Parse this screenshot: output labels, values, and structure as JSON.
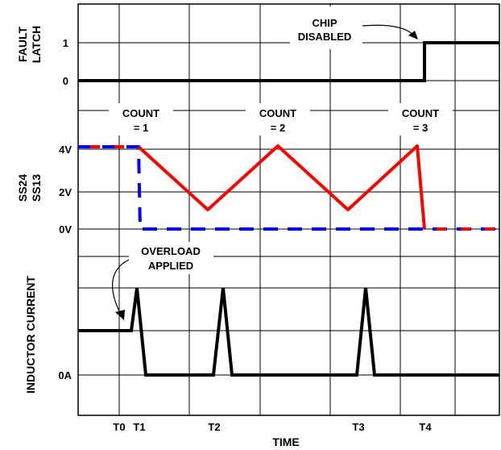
{
  "chart_data": {
    "type": "line",
    "x_axis_label": "TIME",
    "x_ticks": [
      "T0",
      "T1",
      "T2",
      "T3",
      "T4"
    ],
    "panels": [
      {
        "ylabel_lines": [
          "FAULT",
          "LATCH"
        ],
        "ytick_labels": [
          "1",
          "0"
        ],
        "annotations": [
          "CHIP",
          "DISABLED"
        ],
        "series": [
          {
            "color": "#000000",
            "points": [
              [
                "start",
                0
              ],
              [
                "T4",
                0
              ],
              [
                "T4",
                1
              ],
              [
                "end",
                1
              ]
            ]
          }
        ]
      },
      {
        "ylabel_lines": [
          "SS24",
          "SS13"
        ],
        "ylabel_colors": [
          "#ff0000",
          "#0000ff"
        ],
        "ytick_labels": [
          "4V",
          "2V",
          "0V"
        ],
        "count_labels": [
          {
            "top": "COUNT",
            "bottom": "= 1"
          },
          {
            "top": "COUNT",
            "bottom": "= 2"
          },
          {
            "top": "COUNT",
            "bottom": "= 3"
          }
        ],
        "series": [
          {
            "color": "#ff0000",
            "style": "solid",
            "points": [
              [
                0,
                4.2
              ],
              [
                1,
                4.2
              ],
              [
                2,
                1.0
              ],
              [
                3,
                4.2
              ],
              [
                4,
                1.0
              ],
              [
                5,
                4.2
              ],
              [
                6,
                0
              ],
              [
                7,
                0
              ]
            ]
          },
          {
            "color": "#0000ff",
            "style": "dashed",
            "points": [
              [
                0,
                4.2
              ],
              [
                1,
                4.2
              ],
              [
                1.05,
                0
              ],
              [
                7,
                0
              ]
            ]
          }
        ]
      },
      {
        "ylabel_lines": [
          "INDUCTOR CURRENT"
        ],
        "ytick_labels": [
          "0A"
        ],
        "annotations": [
          "OVERLOAD",
          "APPLIED"
        ],
        "series": [
          {
            "color": "#000000",
            "points": [
              [
                "T0",
                "initial"
              ],
              [
                "T1",
                "peak"
              ],
              [
                "T2",
                "peak"
              ],
              [
                "T3",
                "peak"
              ]
            ]
          }
        ]
      }
    ],
    "colors": {
      "ss24": "#ff0000",
      "ss13": "#0000ff",
      "trace": "#000000"
    }
  }
}
